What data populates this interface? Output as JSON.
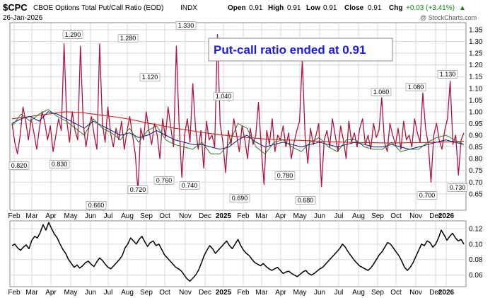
{
  "header": {
    "symbol": "$CPC",
    "name": "CBOE Options Total Put/Call Ratio (EOD)",
    "exchange": "INDX",
    "date": "26-Jan-2026",
    "open_label": "Open",
    "open_value": "0.91",
    "high_label": "High",
    "high_value": "0.91",
    "low_label": "Low",
    "low_value": "0.91",
    "close_label": "Close",
    "close_value": "0.91",
    "chg_label": "Chg",
    "chg_value": "+0.03 (+3.41%)",
    "chg_marker": "▲"
  },
  "watermark": "@ StockCharts.com",
  "callout": "Put-call ratio ended at 0.91",
  "colors": {
    "price": "#b0143c",
    "ma_long": "#d81e1e",
    "ma_mid": "#0a1a8a",
    "ma_short": "#1e6e1e",
    "callout_text": "#1a1aee",
    "grid": "#d8d8d8"
  },
  "chart_data": [
    {
      "type": "line",
      "ylim": [
        0.58,
        1.38
      ],
      "y_ticks": [
        "0.65",
        "0.70",
        "0.75",
        "0.80",
        "0.85",
        "0.90",
        "0.95",
        "1.00",
        "1.05",
        "1.10",
        "1.15",
        "1.20",
        "1.25",
        "1.30",
        "1.35"
      ],
      "x_ticks": [
        "Feb",
        "Mar",
        "Apr",
        "May",
        "Jun",
        "Jul",
        "Aug",
        "Sep",
        "Oct",
        "Nov",
        "Dec",
        "2025",
        "Feb",
        "Mar",
        "Apr",
        "May",
        "Jun",
        "Jul",
        "Aug",
        "Sep",
        "Oct",
        "Nov",
        "Dec",
        "2026"
      ],
      "annotations": [
        {
          "label": "0.820",
          "value": 0.82
        },
        {
          "label": "0.830",
          "value": 0.83
        },
        {
          "label": "1.290",
          "value": 1.29
        },
        {
          "label": "0.660",
          "value": 0.66
        },
        {
          "label": "1.280",
          "value": 1.28
        },
        {
          "label": "0.720",
          "value": 0.72
        },
        {
          "label": "1.120",
          "value": 1.12
        },
        {
          "label": "0.760",
          "value": 0.76
        },
        {
          "label": "1.330",
          "value": 1.33
        },
        {
          "label": "0.740",
          "value": 0.74
        },
        {
          "label": "1.040",
          "value": 1.04
        },
        {
          "label": "0.690",
          "value": 0.69
        },
        {
          "label": "0.780",
          "value": 0.78
        },
        {
          "label": "0.680",
          "value": 0.68
        },
        {
          "label": "1.060",
          "value": 1.06
        },
        {
          "label": "1.080",
          "value": 1.08
        },
        {
          "label": "0.700",
          "value": 0.7
        },
        {
          "label": "1.130",
          "value": 1.13
        },
        {
          "label": "0.730",
          "value": 0.73
        }
      ],
      "series": [
        {
          "key": "price",
          "values": [
            0.95,
            0.87,
            0.82,
            0.9,
            1.02,
            0.96,
            0.88,
            0.97,
            0.91,
            0.84,
            0.93,
            1.0,
            0.95,
            0.88,
            0.94,
            0.83,
            0.9,
            0.97,
            0.92,
            1.29,
            0.96,
            0.87,
            1.0,
            0.92,
            0.88,
            1.28,
            0.95,
            0.85,
            0.93,
            0.98,
            0.9,
            0.84,
            1.29,
            0.95,
            0.87,
            1.02,
            0.91,
            0.85,
            0.93,
            0.88,
            0.96,
            0.84,
            0.92,
            0.98,
            0.9,
            0.82,
            0.66,
            0.93,
            0.88,
            1.0,
            0.92,
            0.86,
            0.95,
            0.9,
            0.8,
            0.97,
            0.89,
            1.02,
            0.93,
            0.85,
            1.28,
            0.95,
            0.72,
            0.9,
            0.97,
            0.87,
            1.12,
            0.93,
            0.84,
            0.92,
            0.76,
            0.96,
            0.88,
            0.9,
            0.85,
            1.33,
            0.95,
            0.87,
            0.74,
            0.92,
            0.86,
            0.97,
            0.9,
            0.83,
            0.94,
            0.88,
            0.8,
            0.93,
            0.86,
            0.9,
            1.04,
            0.85,
            0.69,
            0.92,
            0.86,
            0.97,
            0.83,
            0.9,
            0.88,
            0.94,
            0.85,
            0.91,
            0.8,
            0.87,
            0.92,
            0.96,
            1.22,
            0.9,
            0.78,
            0.93,
            0.86,
            0.9,
            0.95,
            0.68,
            0.88,
            0.92,
            0.85,
            0.97,
            0.9,
            0.83,
            0.94,
            0.88,
            0.8,
            0.96,
            0.87,
            0.91,
            0.85,
            0.93,
            0.97,
            0.86,
            0.9,
            0.84,
            0.95,
            0.89,
            0.92,
            1.06,
            0.87,
            0.83,
            0.95,
            0.9,
            0.86,
            0.93,
            0.84,
            0.96,
            0.88,
            0.9,
            0.85,
            0.97,
            0.91,
            0.87,
            1.08,
            0.93,
            0.86,
            0.7,
            0.9,
            0.95,
            0.88,
            0.84,
            0.92,
            0.97,
            1.13,
            0.86,
            0.9,
            0.73,
            0.88,
            0.91
          ]
        },
        {
          "key": "ma_long",
          "values": [
            0.97,
            0.975,
            0.98,
            0.985,
            0.99,
            0.995,
            1.0,
            0.998,
            0.995,
            0.99,
            0.985,
            0.98,
            0.975,
            0.968,
            0.96,
            0.952,
            0.945,
            0.938,
            0.93,
            0.924,
            0.918,
            0.912,
            0.907,
            0.902,
            0.898,
            0.894,
            0.89,
            0.887,
            0.884,
            0.882,
            0.88,
            0.879,
            0.878,
            0.876,
            0.874,
            0.872,
            0.871,
            0.87,
            0.869,
            0.868,
            0.868,
            0.867,
            0.867,
            0.867,
            0.868,
            0.868,
            0.869,
            0.87,
            0.871,
            0.872,
            0.874
          ]
        },
        {
          "key": "ma_mid",
          "values": [
            0.95,
            0.97,
            0.98,
            0.96,
            1.0,
            0.99,
            0.97,
            0.95,
            0.93,
            0.96,
            0.94,
            0.92,
            0.9,
            0.91,
            0.89,
            0.9,
            0.92,
            0.9,
            0.88,
            0.87,
            0.86,
            0.86,
            0.85,
            0.84,
            0.85,
            0.88,
            0.9,
            0.87,
            0.85,
            0.86,
            0.87,
            0.86,
            0.85,
            0.86,
            0.87,
            0.86,
            0.85,
            0.86,
            0.87,
            0.86,
            0.85,
            0.85,
            0.86,
            0.85,
            0.84,
            0.85,
            0.86,
            0.87,
            0.88,
            0.87,
            0.86
          ]
        },
        {
          "key": "ma_short",
          "values": [
            0.94,
            0.99,
            0.96,
            0.99,
            1.01,
            0.98,
            0.96,
            0.93,
            0.9,
            0.97,
            0.93,
            0.91,
            0.88,
            0.93,
            0.87,
            0.92,
            0.94,
            0.88,
            0.86,
            0.85,
            0.84,
            0.87,
            0.82,
            0.82,
            0.86,
            0.95,
            0.93,
            0.85,
            0.82,
            0.87,
            0.88,
            0.85,
            0.83,
            0.87,
            0.89,
            0.85,
            0.83,
            0.88,
            0.88,
            0.85,
            0.84,
            0.84,
            0.87,
            0.83,
            0.84,
            0.84,
            0.87,
            0.89,
            0.9,
            0.88,
            0.86
          ]
        }
      ]
    },
    {
      "type": "line",
      "ylim": [
        0.045,
        0.13
      ],
      "y_ticks": [
        "0.06",
        "0.08",
        "0.10",
        "0.12"
      ],
      "x_ticks": [
        "Feb",
        "Mar",
        "Apr",
        "May",
        "Jun",
        "Jul",
        "Aug",
        "Sep",
        "Oct",
        "Nov",
        "Dec",
        "2025",
        "Feb",
        "Mar",
        "Apr",
        "May",
        "Jun",
        "Jul",
        "Aug",
        "Sep",
        "Oct",
        "Nov",
        "Dec",
        "2026"
      ],
      "series": [
        {
          "key": "indicator",
          "values": [
            0.098,
            0.1,
            0.095,
            0.092,
            0.096,
            0.099,
            0.094,
            0.105,
            0.11,
            0.108,
            0.115,
            0.125,
            0.118,
            0.128,
            0.12,
            0.113,
            0.108,
            0.1,
            0.093,
            0.088,
            0.08,
            0.075,
            0.07,
            0.073,
            0.069,
            0.072,
            0.076,
            0.078,
            0.074,
            0.071,
            0.077,
            0.082,
            0.079,
            0.074,
            0.07,
            0.068,
            0.072,
            0.076,
            0.08,
            0.085,
            0.095,
            0.1,
            0.108,
            0.104,
            0.1,
            0.106,
            0.11,
            0.103,
            0.097,
            0.102,
            0.104,
            0.098,
            0.1,
            0.093,
            0.086,
            0.082,
            0.078,
            0.074,
            0.07,
            0.068,
            0.065,
            0.06,
            0.055,
            0.052,
            0.056,
            0.06,
            0.066,
            0.075,
            0.085,
            0.092,
            0.098,
            0.094,
            0.088,
            0.092,
            0.096,
            0.1,
            0.104,
            0.098,
            0.094,
            0.1,
            0.106,
            0.098,
            0.092,
            0.088,
            0.085,
            0.08,
            0.076,
            0.074,
            0.072,
            0.075,
            0.071,
            0.068,
            0.066,
            0.068,
            0.07,
            0.066,
            0.062,
            0.064,
            0.065,
            0.062,
            0.06,
            0.058,
            0.061,
            0.064,
            0.066,
            0.062,
            0.06,
            0.062,
            0.065,
            0.068,
            0.07,
            0.074,
            0.078,
            0.082,
            0.086,
            0.09,
            0.094,
            0.1,
            0.096,
            0.09,
            0.085,
            0.08,
            0.076,
            0.072,
            0.07,
            0.068,
            0.066,
            0.069,
            0.074,
            0.08,
            0.086,
            0.09,
            0.096,
            0.102,
            0.1,
            0.095,
            0.09,
            0.085,
            0.078,
            0.07,
            0.066,
            0.07,
            0.076,
            0.084,
            0.092,
            0.1,
            0.098,
            0.104,
            0.102,
            0.096,
            0.1,
            0.108,
            0.118,
            0.112,
            0.105,
            0.11,
            0.114,
            0.108,
            0.104,
            0.106,
            0.1
          ]
        }
      ]
    }
  ]
}
